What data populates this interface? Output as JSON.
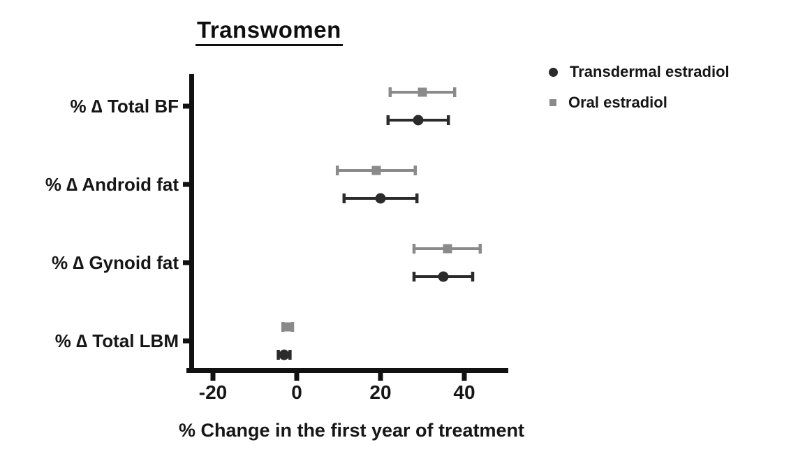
{
  "figure": {
    "title": "Transwomen",
    "x_axis_title": "% Change in the first year of treatment"
  },
  "legend": {
    "items": [
      {
        "label": "Transdermal estradiol",
        "marker": "circle-icon",
        "color": "#2b2b2b"
      },
      {
        "label": "Oral estradiol",
        "marker": "square-icon",
        "color": "#8a8a8a"
      }
    ]
  },
  "chart_data": {
    "type": "scatter",
    "subtype": "horizontal point estimates with error bars (forest plot)",
    "title": "Transwomen",
    "xlabel": "% Change in the first year of treatment",
    "ylabel": "",
    "categories": [
      "% ∆ Total BF",
      "% ∆ Android fat",
      "% ∆ Gynoid fat",
      "% ∆ Total LBM"
    ],
    "x_ticks": [
      -20,
      0,
      20,
      40
    ],
    "xlim": [
      -25,
      50
    ],
    "grid": false,
    "legend_position": "top-right",
    "series": [
      {
        "name": "Oral estradiol",
        "marker": "square",
        "color": "#8a8a8a",
        "values": [
          30,
          19,
          36,
          -2.2
        ],
        "ci_low": [
          22.3,
          9.7,
          28.0,
          -3.3
        ],
        "ci_high": [
          37.7,
          28.3,
          43.8,
          -1.0
        ]
      },
      {
        "name": "Transdermal estradiol",
        "marker": "circle",
        "color": "#2b2b2b",
        "values": [
          29,
          20,
          35,
          -3.0
        ],
        "ci_low": [
          21.8,
          11.3,
          28.0,
          -4.4
        ],
        "ci_high": [
          36.2,
          28.7,
          42.0,
          -1.6
        ]
      }
    ]
  }
}
